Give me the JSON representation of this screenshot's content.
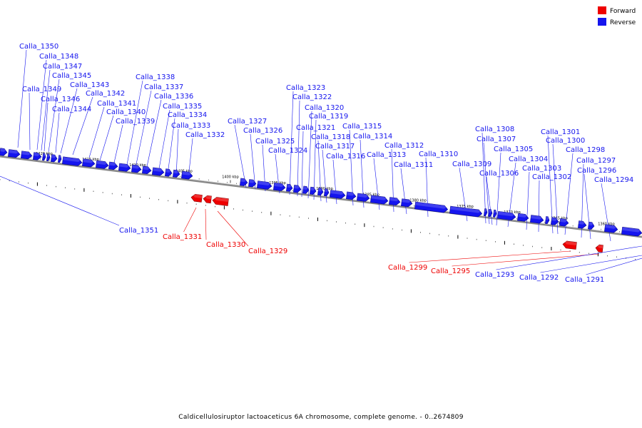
{
  "colors": {
    "forward": "#ee0000",
    "reverse": "#1515ee",
    "forward_dark": "#880000",
    "reverse_dark": "#000088",
    "backbone": "#888888"
  },
  "legend": {
    "forward": "Forward",
    "reverse": "Reverse"
  },
  "caption": "Caldicellulosiruptor lactoaceticus 6A chromosome, complete genome. - 0..2674809",
  "ticks": [
    "1420 kbp",
    "1415 kbp",
    "1410 kbp",
    "1405 kbp",
    "1400 kbp",
    "1395 kbp",
    "1390 kbp",
    "1385 kbp",
    "1380 kbp",
    "1375 kbp",
    "1370 kbp",
    "1365 kbp",
    "1360 kbp"
  ],
  "genes": [
    {
      "name": "Calla_1350",
      "strand": "reverse"
    },
    {
      "name": "Calla_1349",
      "strand": "reverse"
    },
    {
      "name": "Calla_1348",
      "strand": "reverse"
    },
    {
      "name": "Calla_1347",
      "strand": "reverse"
    },
    {
      "name": "Calla_1346",
      "strand": "reverse"
    },
    {
      "name": "Calla_1345",
      "strand": "reverse"
    },
    {
      "name": "Calla_1344",
      "strand": "reverse"
    },
    {
      "name": "Calla_1343",
      "strand": "reverse"
    },
    {
      "name": "Calla_1342",
      "strand": "reverse"
    },
    {
      "name": "Calla_1341",
      "strand": "reverse"
    },
    {
      "name": "Calla_1340",
      "strand": "reverse"
    },
    {
      "name": "Calla_1339",
      "strand": "reverse"
    },
    {
      "name": "Calla_1338",
      "strand": "reverse"
    },
    {
      "name": "Calla_1337",
      "strand": "reverse"
    },
    {
      "name": "Calla_1336",
      "strand": "reverse"
    },
    {
      "name": "Calla_1335",
      "strand": "reverse"
    },
    {
      "name": "Calla_1334",
      "strand": "reverse"
    },
    {
      "name": "Calla_1333",
      "strand": "reverse"
    },
    {
      "name": "Calla_1332",
      "strand": "reverse"
    },
    {
      "name": "Calla_1351",
      "strand": "reverse"
    },
    {
      "name": "Calla_1331",
      "strand": "forward"
    },
    {
      "name": "Calla_1330",
      "strand": "forward"
    },
    {
      "name": "Calla_1329",
      "strand": "forward"
    },
    {
      "name": "Calla_1327",
      "strand": "reverse"
    },
    {
      "name": "Calla_1326",
      "strand": "reverse"
    },
    {
      "name": "Calla_1325",
      "strand": "reverse"
    },
    {
      "name": "Calla_1324",
      "strand": "reverse"
    },
    {
      "name": "Calla_1323",
      "strand": "reverse"
    },
    {
      "name": "Calla_1322",
      "strand": "reverse"
    },
    {
      "name": "Calla_1321",
      "strand": "reverse"
    },
    {
      "name": "Calla_1320",
      "strand": "reverse"
    },
    {
      "name": "Calla_1319",
      "strand": "reverse"
    },
    {
      "name": "Calla_1318",
      "strand": "reverse"
    },
    {
      "name": "Calla_1317",
      "strand": "reverse"
    },
    {
      "name": "Calla_1316",
      "strand": "reverse"
    },
    {
      "name": "Calla_1315",
      "strand": "reverse"
    },
    {
      "name": "Calla_1314",
      "strand": "reverse"
    },
    {
      "name": "Calla_1313",
      "strand": "reverse"
    },
    {
      "name": "Calla_1312",
      "strand": "reverse"
    },
    {
      "name": "Calla_1311",
      "strand": "reverse"
    },
    {
      "name": "Calla_1310",
      "strand": "reverse"
    },
    {
      "name": "Calla_1309",
      "strand": "reverse"
    },
    {
      "name": "Calla_1308",
      "strand": "reverse"
    },
    {
      "name": "Calla_1307",
      "strand": "reverse"
    },
    {
      "name": "Calla_1306",
      "strand": "reverse"
    },
    {
      "name": "Calla_1305",
      "strand": "reverse"
    },
    {
      "name": "Calla_1304",
      "strand": "reverse"
    },
    {
      "name": "Calla_1303",
      "strand": "reverse"
    },
    {
      "name": "Calla_1302",
      "strand": "reverse"
    },
    {
      "name": "Calla_1301",
      "strand": "reverse"
    },
    {
      "name": "Calla_1300",
      "strand": "reverse"
    },
    {
      "name": "Calla_1298",
      "strand": "reverse"
    },
    {
      "name": "Calla_1297",
      "strand": "reverse"
    },
    {
      "name": "Calla_1296",
      "strand": "reverse"
    },
    {
      "name": "Calla_1294",
      "strand": "reverse"
    },
    {
      "name": "Calla_1299",
      "strand": "forward"
    },
    {
      "name": "Calla_1295",
      "strand": "forward"
    },
    {
      "name": "Calla_1293",
      "strand": "reverse"
    },
    {
      "name": "Calla_1292",
      "strand": "reverse"
    },
    {
      "name": "Calla_1291",
      "strand": "reverse"
    }
  ]
}
